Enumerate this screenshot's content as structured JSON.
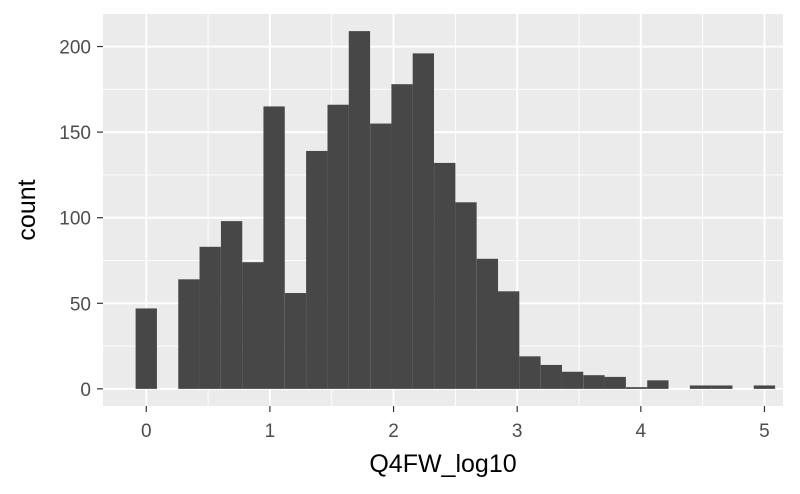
{
  "chart_data": {
    "type": "bar",
    "title": "",
    "xlabel": "Q4FW_log10",
    "ylabel": "count",
    "xlim": [
      -0.35,
      5.15
    ],
    "ylim": [
      -10,
      219
    ],
    "x_ticks": [
      0,
      1,
      2,
      3,
      4,
      5
    ],
    "y_ticks": [
      0,
      50,
      100,
      150,
      200
    ],
    "grid": true,
    "legend": "none",
    "bin_width": 0.1724,
    "bins": [
      {
        "x": 0.0,
        "count": 47
      },
      {
        "x": 0.172,
        "count": 0
      },
      {
        "x": 0.345,
        "count": 64
      },
      {
        "x": 0.517,
        "count": 83
      },
      {
        "x": 0.69,
        "count": 98
      },
      {
        "x": 0.862,
        "count": 74
      },
      {
        "x": 1.034,
        "count": 165
      },
      {
        "x": 1.207,
        "count": 56
      },
      {
        "x": 1.379,
        "count": 139
      },
      {
        "x": 1.552,
        "count": 166
      },
      {
        "x": 1.724,
        "count": 209
      },
      {
        "x": 1.897,
        "count": 155
      },
      {
        "x": 2.069,
        "count": 178
      },
      {
        "x": 2.241,
        "count": 196
      },
      {
        "x": 2.414,
        "count": 132
      },
      {
        "x": 2.586,
        "count": 109
      },
      {
        "x": 2.759,
        "count": 76
      },
      {
        "x": 2.931,
        "count": 57
      },
      {
        "x": 3.103,
        "count": 19
      },
      {
        "x": 3.276,
        "count": 14
      },
      {
        "x": 3.448,
        "count": 10
      },
      {
        "x": 3.621,
        "count": 8
      },
      {
        "x": 3.793,
        "count": 7
      },
      {
        "x": 3.966,
        "count": 1
      },
      {
        "x": 4.138,
        "count": 5
      },
      {
        "x": 4.31,
        "count": 0
      },
      {
        "x": 4.483,
        "count": 2
      },
      {
        "x": 4.655,
        "count": 2
      },
      {
        "x": 4.828,
        "count": 0
      },
      {
        "x": 5.0,
        "count": 2
      }
    ],
    "colors": {
      "panel_background": "#ebebeb",
      "grid_major": "#ffffff",
      "bar_fill": "#474747",
      "tick_text": "#4d4d4d",
      "axis_title": "#000000"
    }
  }
}
